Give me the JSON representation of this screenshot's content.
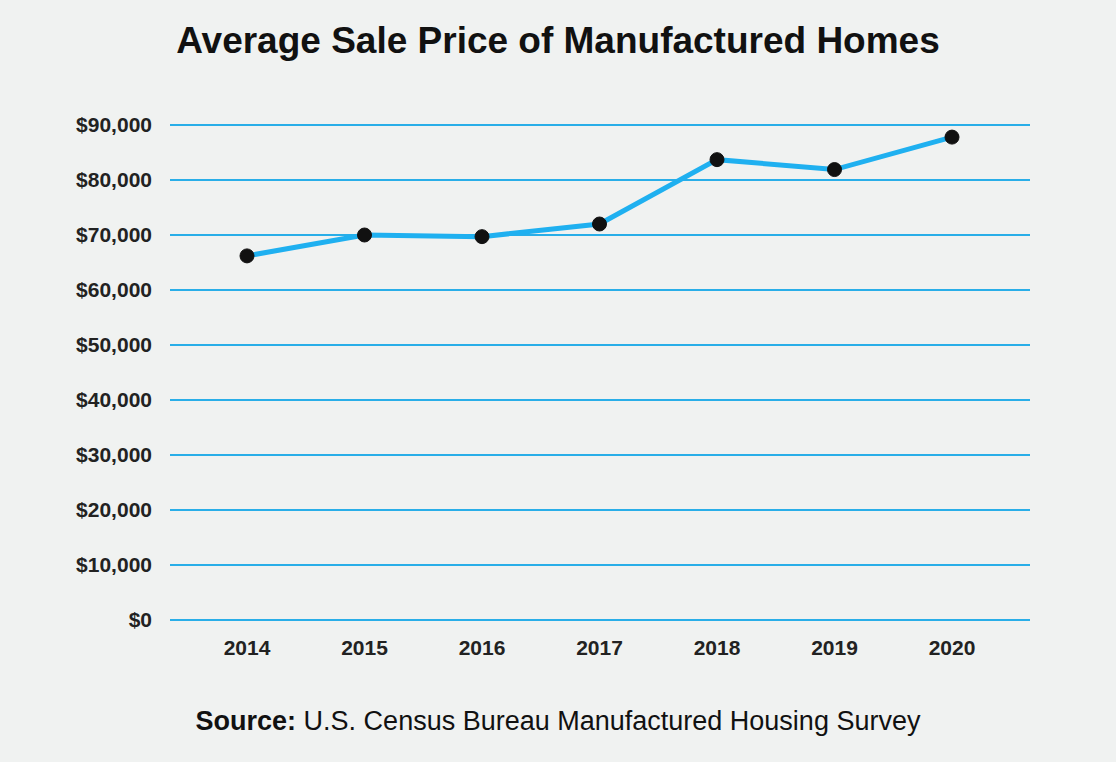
{
  "chart_data": {
    "type": "line",
    "title": "Average Sale Price of Manufactured Homes",
    "annotations": [
      "Source:",
      "U.S. Census Bureau Manufactured Housing Survey"
    ],
    "categories": [
      "2014",
      "2015",
      "2016",
      "2017",
      "2018",
      "2019",
      "2020"
    ],
    "values": [
      66200,
      70000,
      69700,
      72000,
      83700,
      81900,
      87800
    ],
    "color": "#1fb0f0",
    "marker": "circle",
    "ylim": [
      0,
      90000
    ],
    "yticks": [
      {
        "value": 0,
        "label": "$0"
      },
      {
        "value": 10000,
        "label": "$10,000"
      },
      {
        "value": 20000,
        "label": "$20,000"
      },
      {
        "value": 30000,
        "label": "$30,000"
      },
      {
        "value": 40000,
        "label": "$40,000"
      },
      {
        "value": 50000,
        "label": "$50,000"
      },
      {
        "value": 60000,
        "label": "$60,000"
      },
      {
        "value": 70000,
        "label": "$70,000"
      },
      {
        "value": 80000,
        "label": "$80,000"
      },
      {
        "value": 90000,
        "label": "$90,000"
      }
    ],
    "grid": true
  }
}
